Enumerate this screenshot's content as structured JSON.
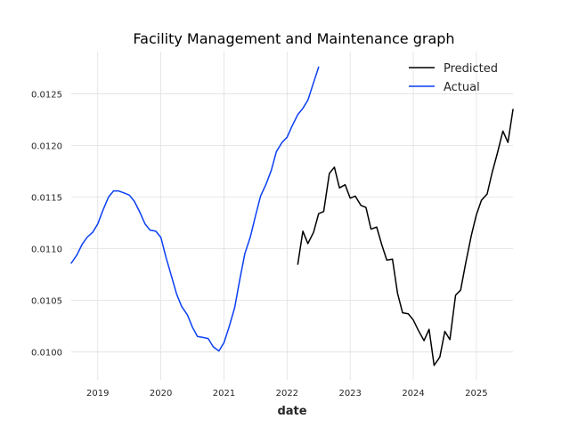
{
  "chart_data": {
    "type": "line",
    "title": "Facility Management and Maintenance graph",
    "xlabel": "date",
    "ylabel": "",
    "grid": true,
    "legend_position": "top-right",
    "xlim": [
      2018.58,
      2025.58
    ],
    "ylim": [
      0.00973,
      0.01291
    ],
    "x_ticks": [
      2019,
      2020,
      2021,
      2022,
      2023,
      2024,
      2025
    ],
    "x_tick_labels": [
      "2019",
      "2020",
      "2021",
      "2022",
      "2023",
      "2024",
      "2025"
    ],
    "y_ticks": [
      0.01,
      0.0105,
      0.011,
      0.0115,
      0.012,
      0.0125
    ],
    "y_tick_labels": [
      "0.0100",
      "0.0105",
      "0.0110",
      "0.0115",
      "0.0120",
      "0.0125"
    ],
    "series": [
      {
        "name": "Predicted",
        "color": "#000000",
        "x": [
          2022.17,
          2022.25,
          2022.33,
          2022.42,
          2022.5,
          2022.58,
          2022.67,
          2022.75,
          2022.83,
          2022.92,
          2023.0,
          2023.08,
          2023.17,
          2023.25,
          2023.33,
          2023.42,
          2023.5,
          2023.58,
          2023.67,
          2023.75,
          2023.83,
          2023.92,
          2024.0,
          2024.08,
          2024.17,
          2024.25,
          2024.33,
          2024.42,
          2024.5,
          2024.58,
          2024.67,
          2024.75,
          2024.83,
          2024.92,
          2025.0,
          2025.08,
          2025.17,
          2025.25,
          2025.33,
          2025.42,
          2025.5,
          2025.58
        ],
        "values": [
          0.01085,
          0.01117,
          0.01105,
          0.01116,
          0.01134,
          0.01136,
          0.01173,
          0.01179,
          0.01159,
          0.01162,
          0.01149,
          0.01151,
          0.01142,
          0.0114,
          0.01119,
          0.01121,
          0.01104,
          0.01089,
          0.0109,
          0.01057,
          0.01038,
          0.01037,
          0.01031,
          0.01021,
          0.01011,
          0.01022,
          0.00987,
          0.00995,
          0.0102,
          0.01012,
          0.01055,
          0.0106,
          0.01086,
          0.01113,
          0.01133,
          0.01147,
          0.01153,
          0.01174,
          0.01192,
          0.01214,
          0.01203,
          0.01235
        ]
      },
      {
        "name": "Actual",
        "color": "#0a3ff2",
        "x": [
          2018.58,
          2018.67,
          2018.75,
          2018.83,
          2018.92,
          2019.0,
          2019.08,
          2019.17,
          2019.25,
          2019.33,
          2019.42,
          2019.5,
          2019.58,
          2019.67,
          2019.75,
          2019.83,
          2019.92,
          2020.0,
          2020.08,
          2020.17,
          2020.25,
          2020.33,
          2020.42,
          2020.5,
          2020.58,
          2020.67,
          2020.75,
          2020.83,
          2020.92,
          2021.0,
          2021.08,
          2021.17,
          2021.25,
          2021.33,
          2021.42,
          2021.5,
          2021.58,
          2021.67,
          2021.75,
          2021.83,
          2021.92,
          2022.0,
          2022.08,
          2022.17,
          2022.25,
          2022.33,
          2022.42,
          2022.5
        ],
        "values": [
          0.01086,
          0.01094,
          0.01104,
          0.01111,
          0.01116,
          0.01124,
          0.01137,
          0.0115,
          0.01156,
          0.01156,
          0.01154,
          0.01152,
          0.01146,
          0.01135,
          0.01124,
          0.01118,
          0.01117,
          0.01111,
          0.01092,
          0.01073,
          0.01056,
          0.01044,
          0.01036,
          0.01024,
          0.01015,
          0.01014,
          0.01013,
          0.01005,
          0.01001,
          0.01009,
          0.01024,
          0.01043,
          0.0107,
          0.01095,
          0.01112,
          0.01132,
          0.01151,
          0.01163,
          0.01176,
          0.01194,
          0.01203,
          0.01208,
          0.01219,
          0.0123,
          0.01236,
          0.01244,
          0.01261,
          0.01276
        ]
      }
    ]
  }
}
